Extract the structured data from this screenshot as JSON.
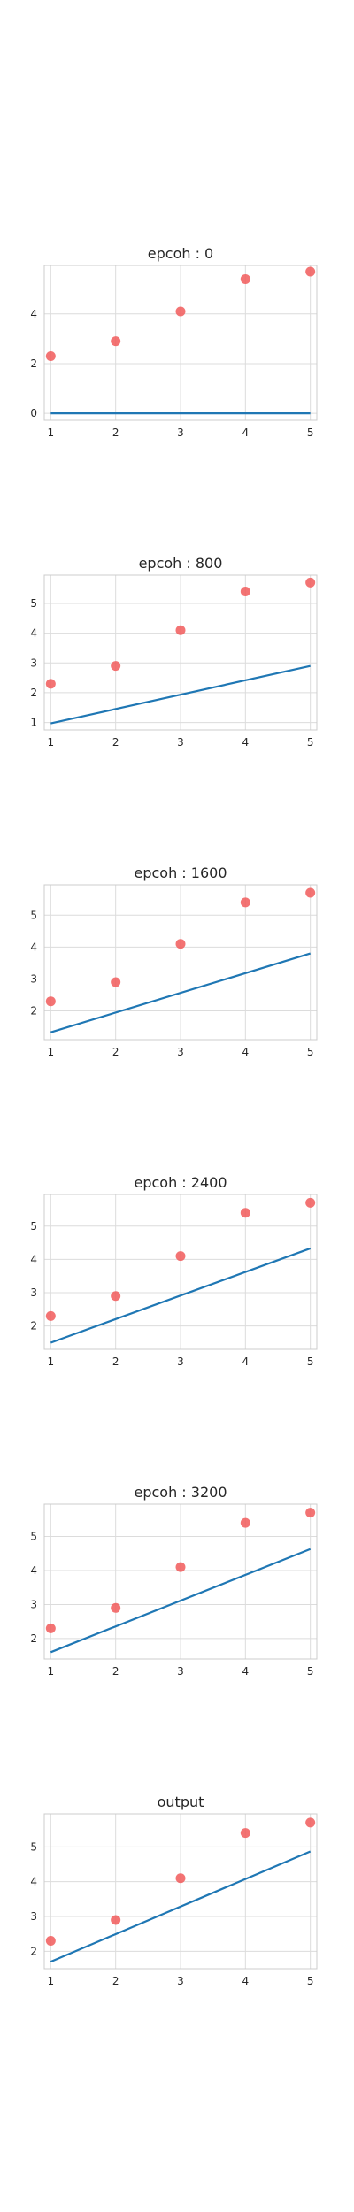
{
  "chart_data": [
    {
      "type": "scatter",
      "title": "epcoh : 0",
      "xlabel": "",
      "ylabel": "",
      "grid": true,
      "xlim": [
        0.9,
        5.1
      ],
      "ylim": [
        -0.28,
        5.95
      ],
      "xticks": [
        1,
        2,
        3,
        4,
        5
      ],
      "yticks": [
        0,
        2,
        4
      ],
      "points": {
        "x": [
          1,
          2,
          3,
          4,
          5
        ],
        "y": [
          2.3,
          2.9,
          4.1,
          5.4,
          5.7
        ]
      },
      "line": {
        "x": [
          1,
          5
        ],
        "y": [
          0.0,
          0.0
        ]
      },
      "colors": {
        "points": "#f15b5b",
        "line": "#1f77b4"
      }
    },
    {
      "type": "scatter",
      "title": "epcoh : 800",
      "xlabel": "",
      "ylabel": "",
      "grid": true,
      "xlim": [
        0.9,
        5.1
      ],
      "ylim": [
        0.75,
        5.95
      ],
      "xticks": [
        1,
        2,
        3,
        4,
        5
      ],
      "yticks": [
        1,
        2,
        3,
        4,
        5
      ],
      "points": {
        "x": [
          1,
          2,
          3,
          4,
          5
        ],
        "y": [
          2.3,
          2.9,
          4.1,
          5.4,
          5.7
        ]
      },
      "line": {
        "x": [
          1,
          5
        ],
        "y": [
          0.97,
          2.9
        ]
      },
      "colors": {
        "points": "#f15b5b",
        "line": "#1f77b4"
      }
    },
    {
      "type": "scatter",
      "title": "epcoh : 1600",
      "xlabel": "",
      "ylabel": "",
      "grid": true,
      "xlim": [
        0.9,
        5.1
      ],
      "ylim": [
        1.1,
        5.95
      ],
      "xticks": [
        1,
        2,
        3,
        4,
        5
      ],
      "yticks": [
        2,
        3,
        4,
        5
      ],
      "points": {
        "x": [
          1,
          2,
          3,
          4,
          5
        ],
        "y": [
          2.3,
          2.9,
          4.1,
          5.4,
          5.7
        ]
      },
      "line": {
        "x": [
          1,
          5
        ],
        "y": [
          1.33,
          3.8
        ]
      },
      "colors": {
        "points": "#f15b5b",
        "line": "#1f77b4"
      }
    },
    {
      "type": "scatter",
      "title": "epcoh : 2400",
      "xlabel": "",
      "ylabel": "",
      "grid": true,
      "xlim": [
        0.9,
        5.1
      ],
      "ylim": [
        1.3,
        5.95
      ],
      "xticks": [
        1,
        2,
        3,
        4,
        5
      ],
      "yticks": [
        2,
        3,
        4,
        5
      ],
      "points": {
        "x": [
          1,
          2,
          3,
          4,
          5
        ],
        "y": [
          2.3,
          2.9,
          4.1,
          5.4,
          5.7
        ]
      },
      "line": {
        "x": [
          1,
          5
        ],
        "y": [
          1.5,
          4.33
        ]
      },
      "colors": {
        "points": "#f15b5b",
        "line": "#1f77b4"
      }
    },
    {
      "type": "scatter",
      "title": "epcoh : 3200",
      "xlabel": "",
      "ylabel": "",
      "grid": true,
      "xlim": [
        0.9,
        5.1
      ],
      "ylim": [
        1.4,
        5.95
      ],
      "xticks": [
        1,
        2,
        3,
        4,
        5
      ],
      "yticks": [
        2,
        3,
        4,
        5
      ],
      "points": {
        "x": [
          1,
          2,
          3,
          4,
          5
        ],
        "y": [
          2.3,
          2.9,
          4.1,
          5.4,
          5.7
        ]
      },
      "line": {
        "x": [
          1,
          5
        ],
        "y": [
          1.6,
          4.63
        ]
      },
      "colors": {
        "points": "#f15b5b",
        "line": "#1f77b4"
      }
    },
    {
      "type": "scatter",
      "title": "output",
      "xlabel": "",
      "ylabel": "",
      "grid": true,
      "xlim": [
        0.9,
        5.1
      ],
      "ylim": [
        1.5,
        5.95
      ],
      "xticks": [
        1,
        2,
        3,
        4,
        5
      ],
      "yticks": [
        2,
        3,
        4,
        5
      ],
      "points": {
        "x": [
          1,
          2,
          3,
          4,
          5
        ],
        "y": [
          2.3,
          2.9,
          4.1,
          5.4,
          5.7
        ]
      },
      "line": {
        "x": [
          1,
          5
        ],
        "y": [
          1.7,
          4.87
        ]
      },
      "colors": {
        "points": "#f15b5b",
        "line": "#1f77b4"
      }
    }
  ]
}
